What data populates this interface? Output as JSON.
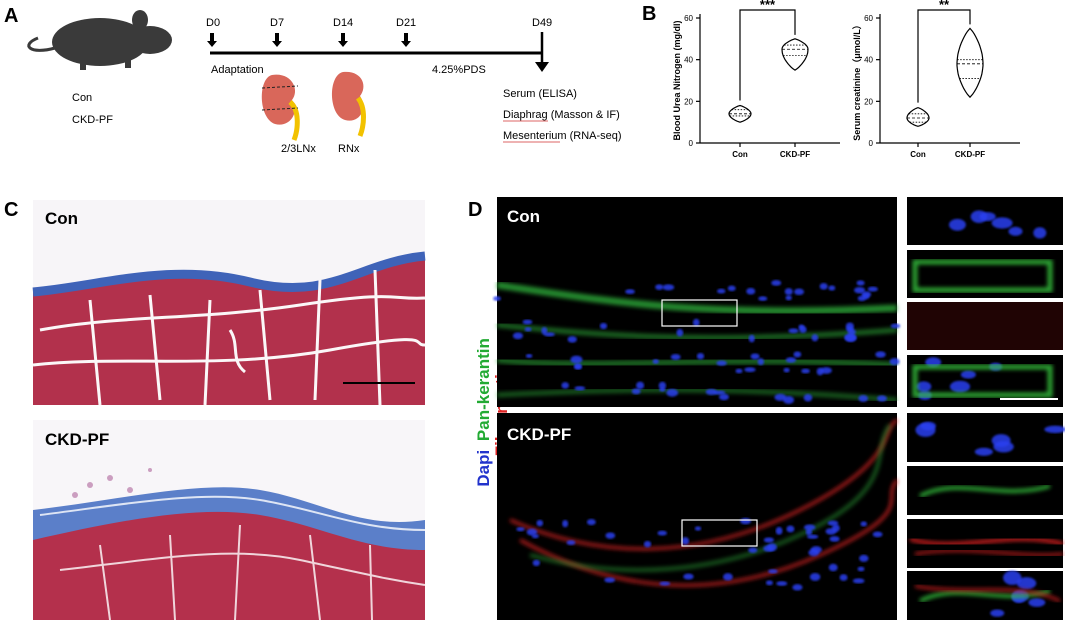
{
  "figure": {
    "panel_labels": [
      "A",
      "B",
      "C",
      "D"
    ],
    "timeline": {
      "days": [
        "D0",
        "D7",
        "D14",
        "D21",
        "D49"
      ],
      "phases": [
        "Adaptation",
        "4.25%PDS"
      ],
      "surgeries": [
        "2/3LNx",
        "RNx"
      ],
      "groups": [
        "Con",
        "CKD-PF"
      ],
      "readouts": [
        "Serum (ELISA)",
        "Diaphrag (Masson & IF)",
        "Mesenterium (RNA-seq)"
      ]
    },
    "histology": {
      "labels": [
        "Con",
        "CKD-PF"
      ]
    },
    "immunofluorescence": {
      "labels": [
        "Con",
        "CKD-PF"
      ],
      "stains": [
        "Dapi",
        "Pan-kerantin",
        "Fibronectin"
      ]
    }
  },
  "chart_data": [
    {
      "type": "violin",
      "y_label": "Blood Urea Nitrogen (mg/dl)",
      "categories": [
        "Con",
        "CKD-PF"
      ],
      "stats": [
        {
          "min": 10,
          "q1": 13,
          "median": 14,
          "q3": 16,
          "max": 18
        },
        {
          "min": 35,
          "q1": 42,
          "median": 45,
          "q3": 47,
          "max": 50
        }
      ],
      "significance": "***",
      "ylim": [
        0,
        60
      ],
      "yticks": [
        0,
        20,
        40,
        60
      ],
      "color": "#000000"
    },
    {
      "type": "violin",
      "y_label": "Serum creatinine（μmol/L）",
      "categories": [
        "Con",
        "CKD-PF"
      ],
      "stats": [
        {
          "min": 8,
          "q1": 10,
          "median": 12,
          "q3": 14,
          "max": 17
        },
        {
          "min": 22,
          "q1": 31,
          "median": 38,
          "q3": 40,
          "max": 55
        }
      ],
      "significance": "**",
      "ylim": [
        0,
        60
      ],
      "yticks": [
        0,
        20,
        40,
        60
      ],
      "color": "#000000"
    }
  ]
}
